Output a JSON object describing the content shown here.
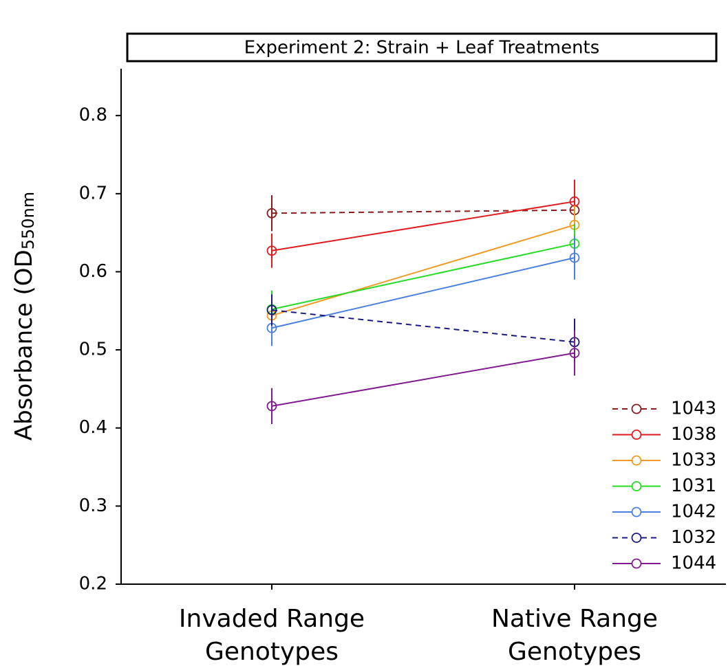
{
  "chart_data": {
    "type": "line",
    "title": "Experiment 2: Strain + Leaf Treatments",
    "ylabel": "Absorbance (OD",
    "ylabel_subscript": "550nm",
    "categories": [
      [
        "Invaded Range",
        "Genotypes"
      ],
      [
        "Native Range",
        "Genotypes"
      ]
    ],
    "ylim": [
      0.2,
      0.86
    ],
    "yticks": [
      0.2,
      0.3,
      0.4,
      0.5,
      0.6,
      0.7,
      0.8
    ],
    "legend": "lower right",
    "series": [
      {
        "name": "1043",
        "color": "#8b1a1a",
        "dashed": true,
        "values": [
          0.675,
          0.679
        ],
        "errors": [
          0.023,
          0.02
        ]
      },
      {
        "name": "1038",
        "color": "#e31a1c",
        "dashed": false,
        "values": [
          0.627,
          0.69
        ],
        "errors": [
          0.022,
          0.028
        ]
      },
      {
        "name": "1033",
        "color": "#ee9a22",
        "dashed": false,
        "values": [
          0.544,
          0.66
        ],
        "errors": [
          0.02,
          0.025
        ]
      },
      {
        "name": "1031",
        "color": "#22dd22",
        "dashed": false,
        "values": [
          0.552,
          0.636
        ],
        "errors": [
          0.024,
          0.025
        ]
      },
      {
        "name": "1042",
        "color": "#4a7fe0",
        "dashed": false,
        "values": [
          0.528,
          0.618
        ],
        "errors": [
          0.023,
          0.028
        ]
      },
      {
        "name": "1032",
        "color": "#1a1a80",
        "dashed": true,
        "values": [
          0.551,
          0.51
        ],
        "errors": [
          0.02,
          0.03
        ]
      },
      {
        "name": "1044",
        "color": "#7f1a8f",
        "dashed": false,
        "values": [
          0.428,
          0.496
        ],
        "errors": [
          0.023,
          0.029
        ]
      }
    ]
  }
}
